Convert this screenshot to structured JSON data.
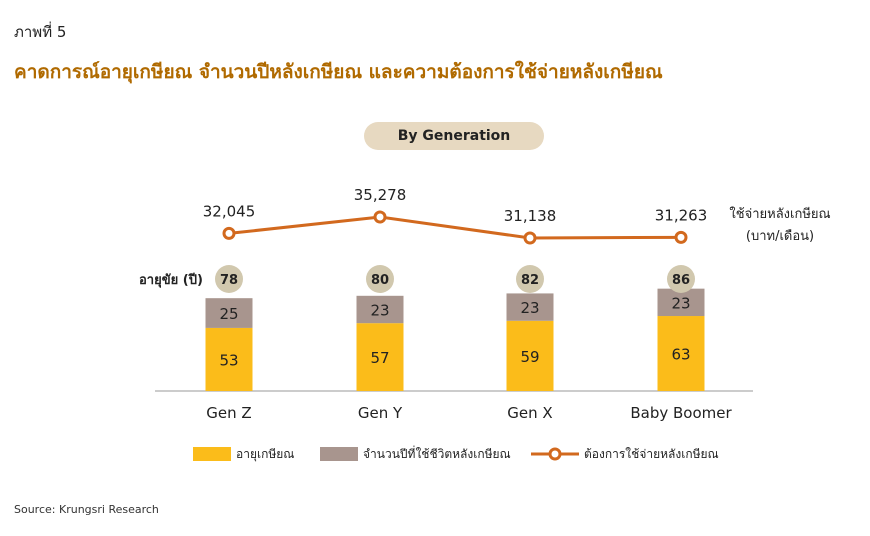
{
  "figure_label": "ภาพที่ 5",
  "title": "คาดการณ์อายุเกษียณ จำนวนปีหลังเกษียณ และความต้องการใช้จ่ายหลังเกษียณ",
  "pill_label": "By Generation",
  "source": "Source: Krungsri Research",
  "colors": {
    "retire_age": "#fbbc1a",
    "years_after": "#a8958e",
    "spending": "#d2691e",
    "life_bubble": "#d1c8ae",
    "title": "#b06a00"
  },
  "chart_data": {
    "type": "bar",
    "stacked": true,
    "categories": [
      "Gen Z",
      "Gen Y",
      "Gen X",
      "Baby Boomer"
    ],
    "series": [
      {
        "name": "อายุเกษียณ",
        "values": [
          53,
          57,
          59,
          63
        ]
      },
      {
        "name": "จำนวนปีที่ใช้ชีวิตหลังเกษียณ",
        "values": [
          25,
          23,
          23,
          23
        ]
      }
    ],
    "life_expectancy": {
      "label": "อายุขัย (ปี)",
      "values": [
        78,
        80,
        82,
        86
      ]
    },
    "line_series": {
      "name": "ต้องการใช้จ่ายหลังเกษียณ",
      "axis_label_1": "ใช้จ่ายหลังเกษียณ",
      "axis_label_2": "(บาท/เดือน)",
      "values": [
        32045,
        35278,
        31138,
        31263
      ],
      "value_labels": [
        "32,045",
        "35,278",
        "31,138",
        "31,263"
      ]
    },
    "legend_position": "bottom",
    "grid": false
  }
}
